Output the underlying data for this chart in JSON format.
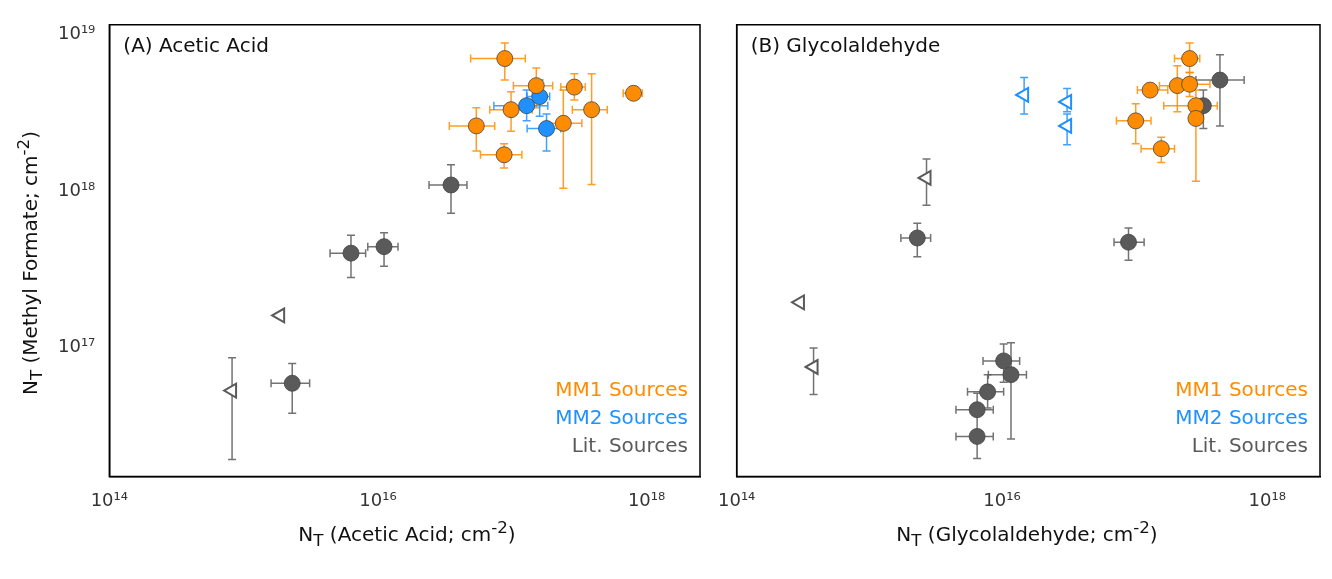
{
  "chart_data": [
    {
      "type": "scatter",
      "title": "(A) Acetic Acid",
      "xlabel": "N$_{T}$ (Acetic Acid; cm$^{-2}$)",
      "ylabel": "N$_{T}$ (Methyl Formate; cm$^{-2}$)",
      "log": "xy",
      "xlim": [
        100000000000000.0,
        2.5e+18
      ],
      "ylim": [
        1.5e+16,
        1.15e+19
      ],
      "xticks": [
        {
          "value": 100000000000000.0,
          "label": "10¹⁴"
        },
        {
          "value": 1e+16,
          "label": "10¹⁶"
        },
        {
          "value": 1e+18,
          "label": "10¹⁸"
        }
      ],
      "yticks": [
        {
          "value": 1e+17,
          "label": "10¹⁷"
        },
        {
          "value": 1e+18,
          "label": "10¹⁸"
        },
        {
          "value": 1e+19,
          "label": "10¹⁹"
        }
      ],
      "legend": "bottom right",
      "series": [
        {
          "name": "MM1 Sources",
          "color": "#ff8c00",
          "marker": "circle",
          "x": [
            8.8e+16,
            1.51e+17,
            2.9e+17,
            8e+17,
            9.8e+16,
            3.9e+17,
            5.4e+16,
            2.4e+17,
            8.7e+16
          ],
          "values": [
            7e+18,
            4.7e+18,
            4.6e+18,
            4.2e+18,
            3.3e+18,
            3.3e+18,
            2.6e+18,
            2.7e+18,
            1.7e+18
          ],
          "xerrors": [
            [
              4.9e+16,
              1.25e+17
            ],
            [
              1.02e+17,
              2e+17
            ],
            [
              2.3e+17,
              3.5e+17
            ],
            [
              6.7e+17,
              9.3e+17
            ],
            [
              6.8e+16,
              1.41e+17
            ],
            [
              2.8e+17,
              5.1e+17
            ],
            [
              3.4e+16,
              7.4e+16
            ],
            [
              1.8e+17,
              3.3e+17
            ],
            [
              5.8e+16,
              1.18e+17
            ]
          ],
          "errors": [
            [
              5.1e+18,
              8.8e+18
            ],
            [
              3.4e+18,
              6.1e+18
            ],
            [
              3.8e+18,
              5.6e+18
            ],
            [
              3.9e+18,
              4.6e+18
            ],
            [
              2.4e+18,
              4.3e+18
            ],
            [
              1.1e+18,
              5.6e+18
            ],
            [
              1.8e+18,
              3.4e+18
            ],
            [
              1.04e+18,
              4.4e+18
            ],
            [
              1.4e+18,
              2e+18
            ]
          ]
        },
        {
          "name": "MM2 Sources",
          "color": "#1e90ff",
          "marker": "circle",
          "x": [
            1.28e+17,
            1.6e+17,
            1.8e+17
          ],
          "values": [
            3.5e+18,
            4e+18,
            2.5e+18
          ],
          "xerrors": [
            [
              7.3e+16,
              1.84e+17
            ],
            [
              1.29e+17,
              1.9e+17
            ],
            [
              1.29e+17,
              2.3e+17
            ]
          ],
          "errors": [
            [
              2.8e+18,
              4.4e+18
            ],
            [
              3e+18,
              5.1e+18
            ],
            [
              1.8e+18,
              3.1e+18
            ]
          ]
        },
        {
          "name": "Lit. Sources",
          "color": "#5a5a5a",
          "marker": "circle",
          "x": [
            3.5e+16,
            6300000000000000.0,
            1.11e+16,
            2300000000000000.0
          ],
          "values": [
            1.09e+18,
            4e+17,
            4.4e+17,
            5.9e+16
          ],
          "xerrors": [
            [
              2.4e+16,
              4.6e+16
            ],
            [
              4400000000000000.0,
              8100000000000000.0
            ],
            [
              8400000000000000.0,
              1.41e+16
            ],
            [
              1600000000000000.0,
              3100000000000000.0
            ]
          ],
          "errors": [
            [
              7.2e+17,
              1.47e+18
            ],
            [
              2.8e+17,
              5.2e+17
            ],
            [
              3.3e+17,
              5.4e+17
            ],
            [
              3.8e+16,
              7.9e+16
            ]
          ]
        },
        {
          "color": "#5a5a5a",
          "marker": "triangle",
          "x": [
            1870000000000000.0,
            820000000000000.0
          ],
          "values": [
            1.6e+17,
            5.3e+16
          ],
          "errors": [
            null,
            [
              1.92e+16,
              8.6e+16
            ]
          ]
        }
      ]
    },
    {
      "type": "scatter",
      "title": "(B) Glycolaldehyde",
      "xlabel": "N$_{T}$ (Glycolaldehyde; cm$^{-2}$)",
      "log": "xy",
      "xlim": [
        100000000000000.0,
        2.5e+18
      ],
      "ylim": [
        1.5e+16,
        1.15e+19
      ],
      "xticks": [
        {
          "value": 100000000000000.0,
          "label": "10¹⁴"
        },
        {
          "value": 1e+16,
          "label": "10¹⁶"
        },
        {
          "value": 1e+18,
          "label": "10¹⁸"
        }
      ],
      "yticks": [
        {
          "value": 1e+17,
          "label": null
        },
        {
          "value": 1e+18,
          "label": null
        },
        {
          "value": 1e+19,
          "label": null
        }
      ],
      "tick_labels": "x",
      "legend": "bottom right",
      "series": [
        {
          "name": "MM1 Sources",
          "color": "#ff8c00",
          "marker": "circle",
          "x": [
            2.6e+17,
            2.1e+17,
            2.6e+17,
            1.31e+17,
            2.9e+17,
            2.9e+17,
            1.02e+17,
            1.59e+17
          ],
          "values": [
            7e+18,
            4.7e+18,
            4.8e+18,
            4.4e+18,
            3.5e+18,
            2.9e+18,
            2.8e+18,
            1.86e+18
          ],
          "xerrors": [
            [
              2e+17,
              3.1e+17
            ],
            [
              1.54e+17,
              2.1e+17
            ],
            [
              2.6e+17,
              3.7e+17
            ],
            [
              1.05e+17,
              1.78e+17
            ],
            [
              1.66e+17,
              4.2e+17
            ],
            null,
            [
              7.3e+16,
              1.33e+17
            ],
            [
              1.12e+17,
              2e+17
            ]
          ],
          "errors": [
            [
              5.7e+18,
              8.8e+18
            ],
            [
              3.2e+18,
              6.3e+18
            ],
            [
              4e+18,
              5.7e+18
            ],
            null,
            [
              3.5e+18,
              4.4e+18
            ],
            [
              1.15e+18,
              2.9e+18
            ],
            [
              2e+18,
              3.6e+18
            ],
            [
              1.52e+18,
              2.2e+18
            ]
          ]
        },
        {
          "name": "MM2 Sources",
          "color": "#1e90ff",
          "marker": "triangle",
          "x": [
            1.47e+16,
            3.1e+16,
            3.1e+16
          ],
          "values": [
            4.1e+18,
            3.7e+18,
            2.6e+18
          ],
          "errors": [
            [
              3.1e+18,
              5.3e+18
            ],
            [
              3.2e+18,
              4.5e+18
            ],
            [
              1.97e+18,
              3.1e+18
            ]
          ]
        },
        {
          "name": "Lit. Sources",
          "color": "#5a5a5a",
          "marker": "circle",
          "x": [
            4.4e+17,
            3.3e+17,
            9e+16,
            2300000000000000.0,
            1.03e+16,
            1.17e+16,
            7800000000000000.0,
            6500000000000000.0,
            6500000000000000.0
          ],
          "values": [
            5.1e+18,
            3.5e+18,
            4.7e+17,
            5e+17,
            8.2e+16,
            6.7e+16,
            5.2e+16,
            4e+16,
            2.7e+16
          ],
          "xerrors": [
            [
              2.9e+17,
              6.7e+17
            ],
            null,
            [
              7e+16,
              1.18e+17
            ],
            [
              1730000000000000.0,
              2900000000000000.0
            ],
            [
              7200000000000000.0,
              1.36e+16
            ],
            [
              7900000000000000.0,
              1.53e+16
            ],
            [
              5500000000000000.0,
              1.03e+16
            ],
            [
              4500000000000000.0,
              8600000000000000.0
            ],
            [
              4500000000000000.0,
              8600000000000000.0
            ]
          ],
          "errors": [
            [
              2.6e+18,
              7.4e+18
            ],
            [
              2.5e+18,
              4.4e+18
            ],
            [
              3.6e+17,
              5.8e+17
            ],
            [
              3.8e+17,
              6.2e+17
            ],
            [
              6e+16,
              1.05e+17
            ],
            [
              2.6e+16,
              1.07e+17
            ],
            [
              4.1e+16,
              6.7e+16
            ],
            [
              3.7e+16,
              5.1e+16
            ],
            [
              1.95e+16,
              3.7e+16
            ]
          ]
        },
        {
          "color": "#5a5a5a",
          "marker": "triangle",
          "x": [
            2700000000000000.0,
            300000000000000.0,
            380000000000000.0
          ],
          "values": [
            1.21e+18,
            1.94e+17,
            7.5e+16
          ],
          "errors": [
            [
              8.1e+17,
              1.6e+18
            ],
            null,
            [
              5e+16,
              9.9e+16
            ]
          ]
        }
      ]
    }
  ]
}
